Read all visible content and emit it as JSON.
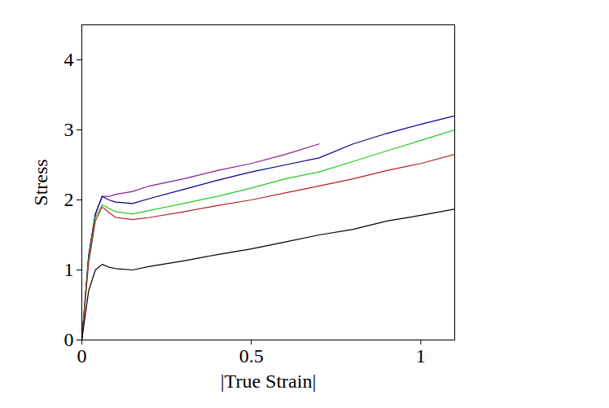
{
  "chart_data": {
    "type": "line",
    "x_label": "|True Strain|",
    "y_label": "Stress",
    "xlim": [
      0,
      1.1
    ],
    "ylim": [
      0,
      4.5
    ],
    "xticks": [
      0,
      0.5,
      1
    ],
    "yticks": [
      0,
      1,
      2,
      3,
      4
    ],
    "x": [
      0,
      0.02,
      0.04,
      0.06,
      0.08,
      0.1,
      0.15,
      0.2,
      0.3,
      0.4,
      0.5,
      0.6,
      0.7,
      0.8,
      0.9,
      1.0,
      1.1
    ],
    "series": [
      {
        "color": "#8b1a8b",
        "values": [
          0,
          1.2,
          1.8,
          2.05,
          2.05,
          2.08,
          2.12,
          2.2,
          2.3,
          2.42,
          2.52,
          2.65,
          2.8,
          null,
          null,
          null,
          null
        ]
      },
      {
        "color": "#00008b",
        "values": [
          0,
          1.2,
          1.8,
          2.05,
          2.0,
          1.97,
          1.95,
          2.02,
          2.15,
          2.28,
          2.4,
          2.5,
          2.6,
          2.8,
          2.95,
          3.08,
          3.2
        ]
      },
      {
        "color": "#22cc22",
        "values": [
          0,
          1.15,
          1.75,
          1.93,
          1.88,
          1.83,
          1.8,
          1.85,
          1.95,
          2.05,
          2.17,
          2.3,
          2.4,
          2.55,
          2.7,
          2.85,
          3.0
        ]
      },
      {
        "color": "#b22222",
        "values": [
          0,
          1.1,
          1.7,
          1.9,
          1.82,
          1.75,
          1.72,
          1.75,
          1.83,
          1.92,
          2.0,
          2.1,
          2.2,
          2.3,
          2.42,
          2.52,
          2.65
        ]
      },
      {
        "color": "#000000",
        "values": [
          0,
          0.7,
          1.0,
          1.08,
          1.04,
          1.02,
          1.0,
          1.05,
          1.13,
          1.22,
          1.3,
          1.4,
          1.5,
          1.58,
          1.7,
          1.78,
          1.87
        ]
      }
    ]
  }
}
